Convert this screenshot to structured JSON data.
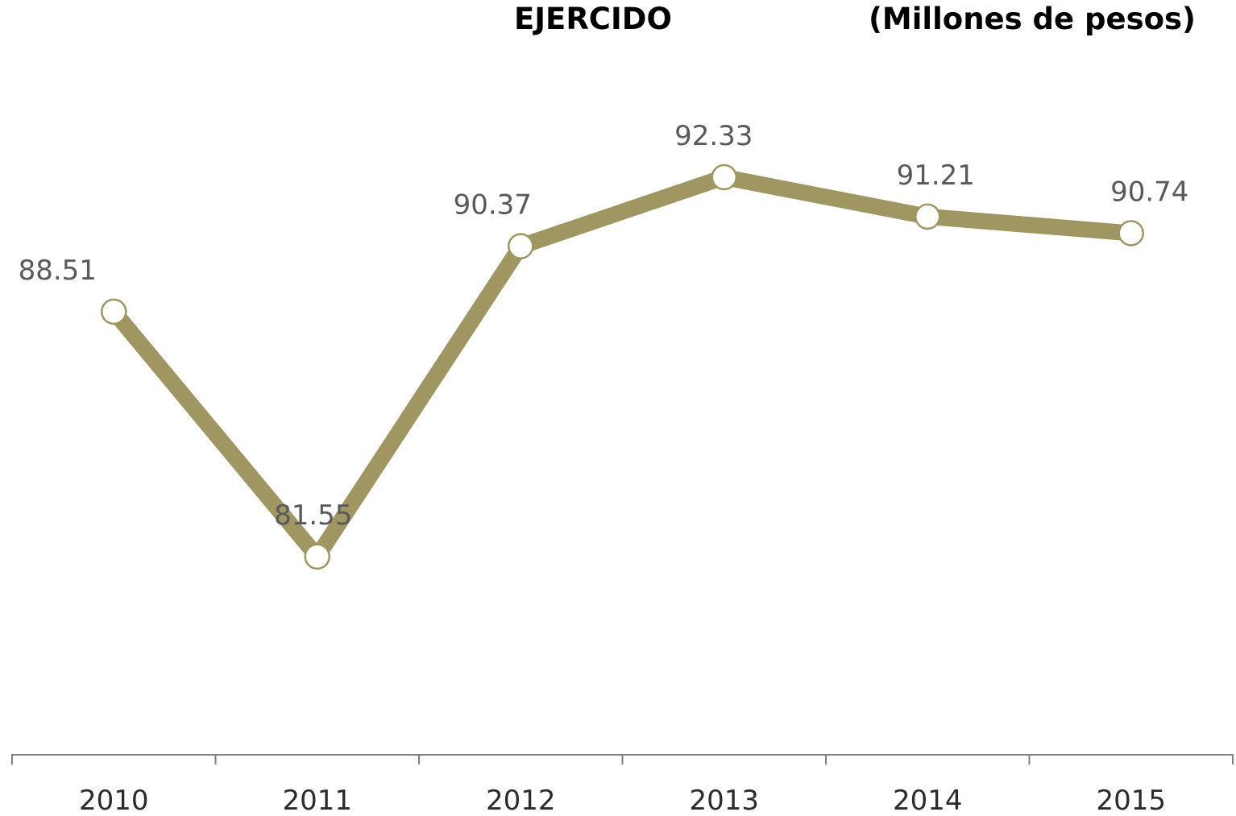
{
  "chart_data": {
    "type": "line",
    "title": "EJERCIDO",
    "subtitle": "(Millones de pesos)",
    "categories": [
      "2010",
      "2011",
      "2012",
      "2013",
      "2014",
      "2015"
    ],
    "series": [
      {
        "values": [
          88.51,
          81.55,
          90.37,
          92.33,
          91.21,
          90.74
        ],
        "labels": [
          "88.51",
          "81.55",
          "90.37",
          "92.33",
          "91.21",
          "90.74"
        ]
      }
    ],
    "xlabel": "",
    "ylabel": "",
    "grid": false,
    "legend": "none",
    "colors": {
      "line": "#A09662",
      "marker_fill": "#FFFFFF",
      "axis": "#808080"
    }
  }
}
